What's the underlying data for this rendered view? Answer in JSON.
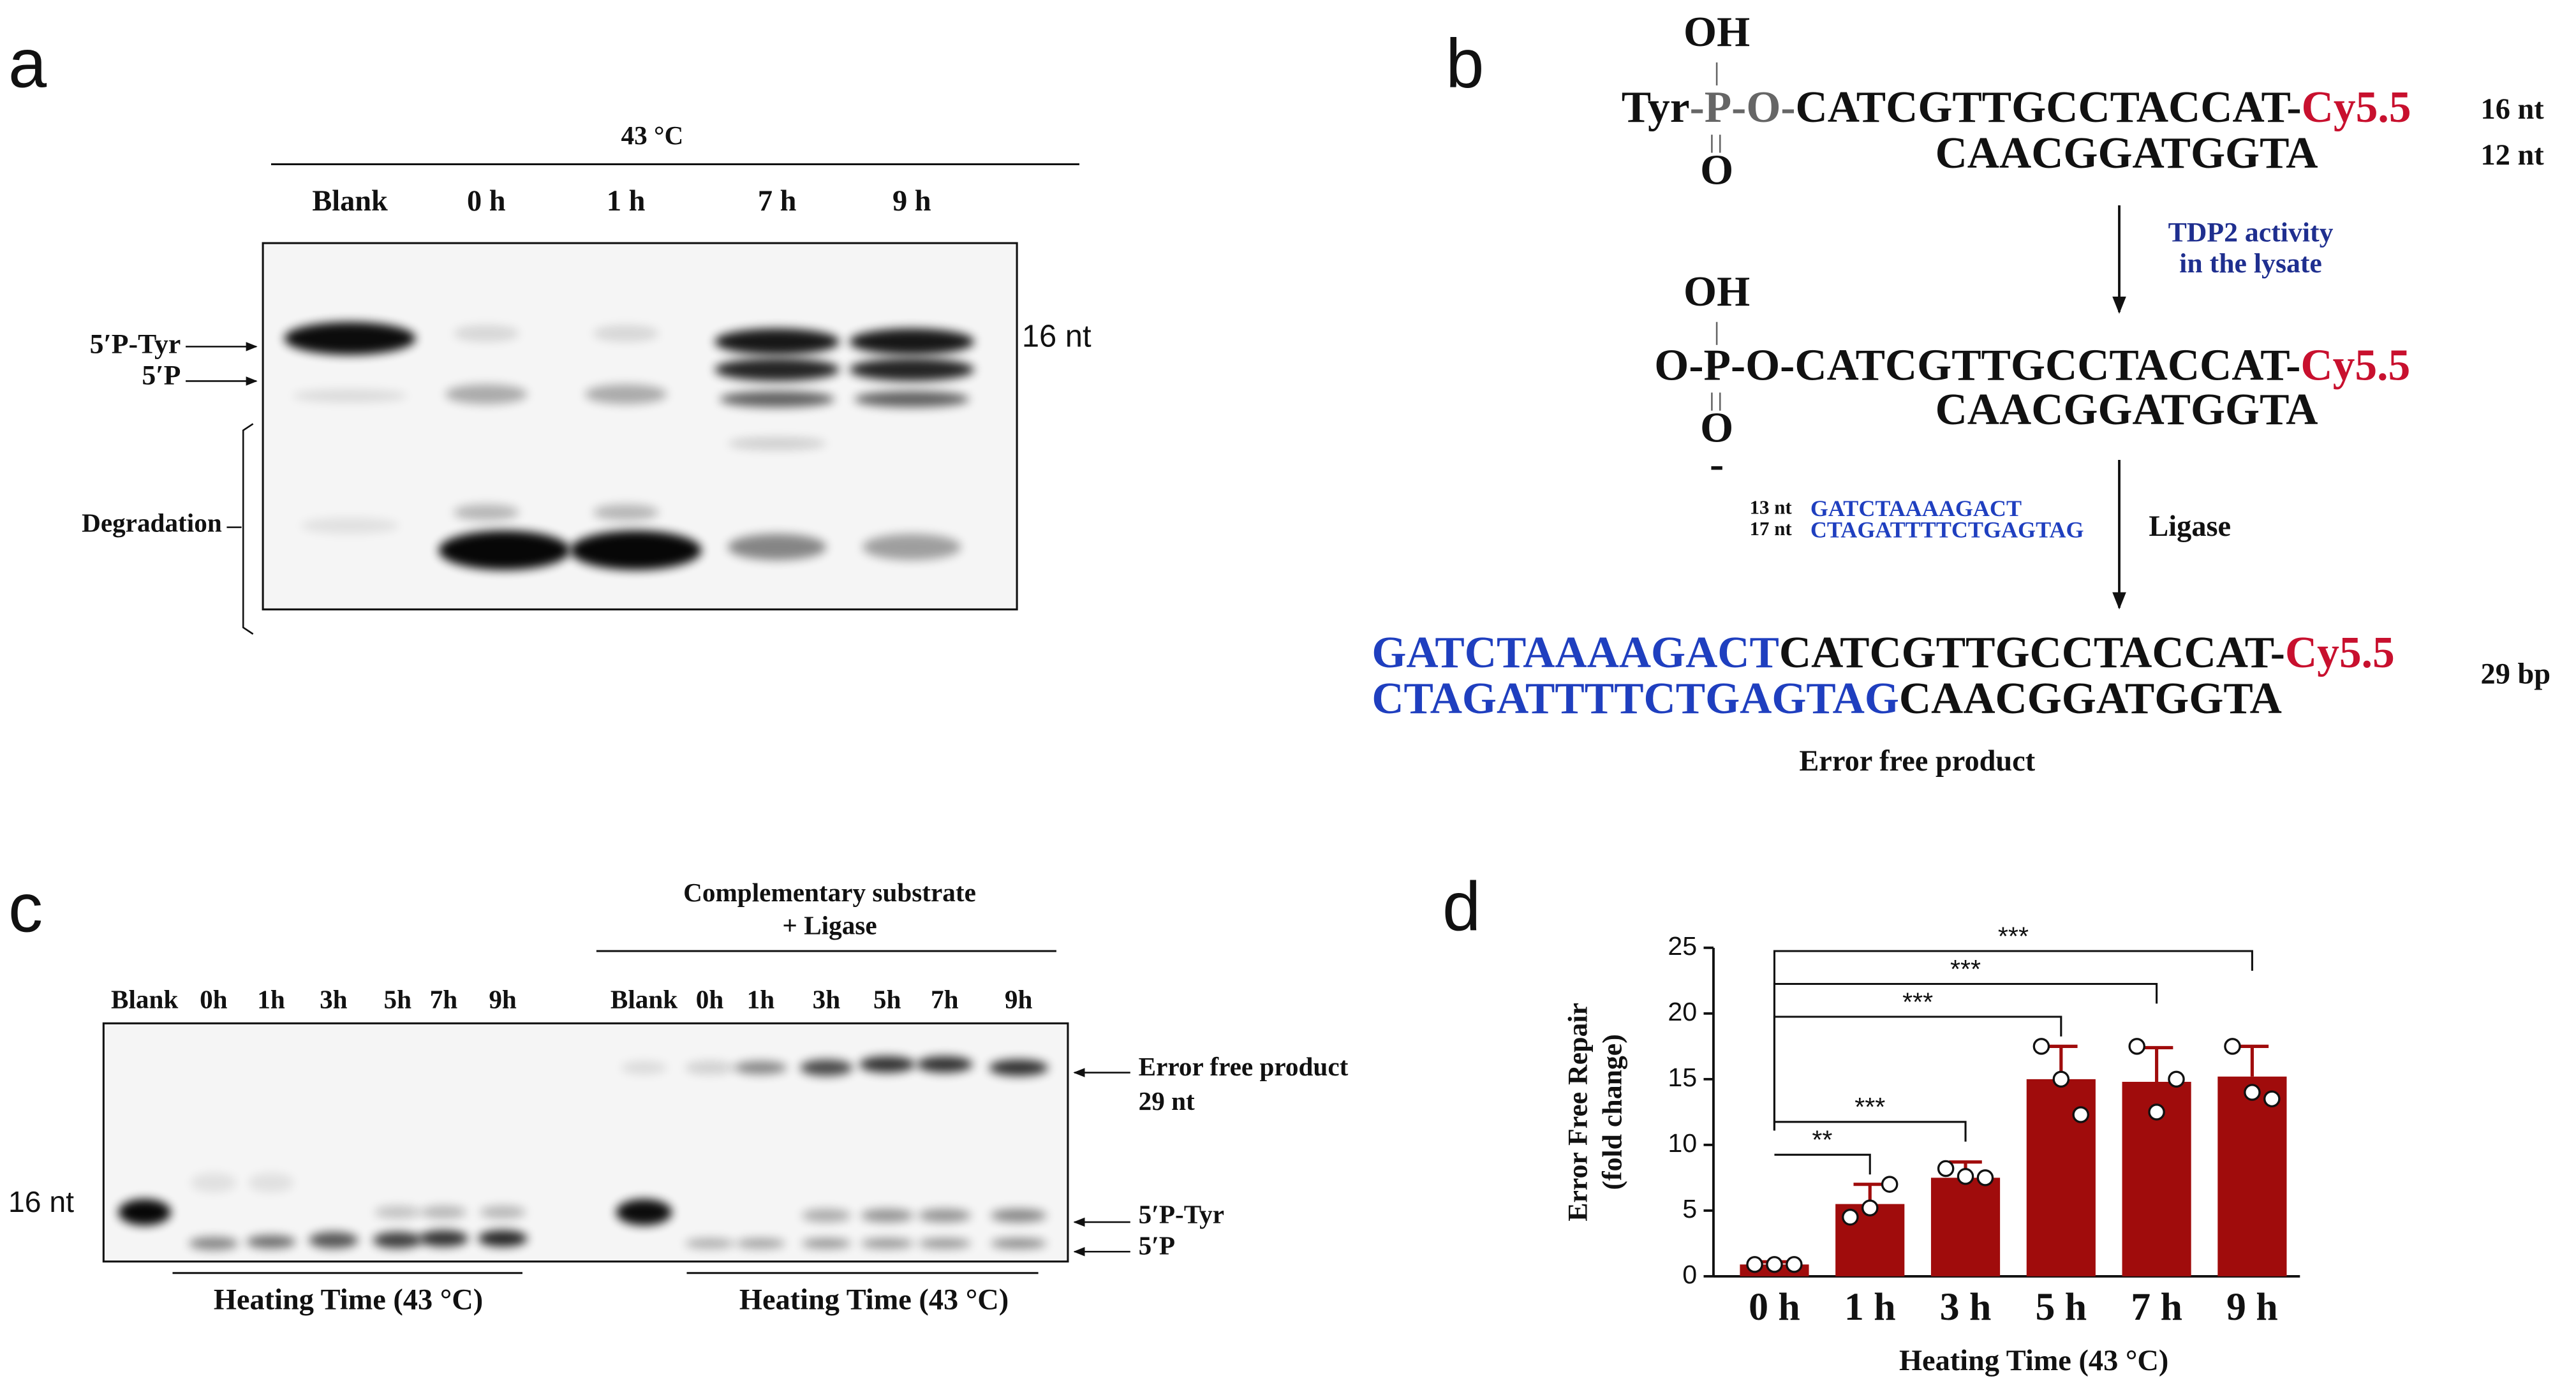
{
  "panel_a": {
    "label": "a",
    "temperature": "43 °C",
    "lanes": [
      "Blank",
      "0 h",
      "1 h",
      "7 h",
      "9 h"
    ],
    "tyr_band": "5′P-Tyr",
    "p_band": "5′P",
    "degradation": "Degradation",
    "size": "16 nt"
  },
  "panel_b": {
    "label": "b",
    "substrate": {
      "oh": "OH",
      "prefix": "Tyr",
      "link": "-P-O-",
      "top": "CATCGTTGCCTACCAT-",
      "dye": "Cy5.5",
      "top_size": "16 nt",
      "bottom": "CAACGGATGGTA",
      "bottom_size": "12 nt",
      "o": "O"
    },
    "step1": [
      "TDP2 activity",
      "in the lysate"
    ],
    "intermediate": {
      "oh": "OH",
      "link": "O-P-O-",
      "top": "CATCGTTGCCTACCAT-",
      "dye": "Cy5.5",
      "bottom": "CAACGGATGGTA",
      "o": "O",
      "charge": "-"
    },
    "oligos": [
      {
        "size": "13 nt",
        "seq": "GATCTAAAAGACT"
      },
      {
        "size": "17 nt",
        "seq": "CTAGATTTTCTGAGTAG"
      }
    ],
    "step2": "Ligase",
    "product": {
      "top_added": "GATCTAAAAGACT",
      "top": "CATCGTTGCCTACCAT-",
      "dye": "Cy5.5",
      "size": "29 bp",
      "bottom_added": "CTAGATTTTCTGAGTAG",
      "bottom": "CAACGGATGGTA",
      "caption": "Error free product"
    }
  },
  "panel_c": {
    "label": "c",
    "header": [
      "Complementary substrate",
      "+ Ligase"
    ],
    "lanes_left": [
      "Blank",
      "0h",
      "1h",
      "3h",
      "5h",
      "7h",
      "9h"
    ],
    "lanes_right": [
      "Blank",
      "0h",
      "1h",
      "3h",
      "5h",
      "7h",
      "9h"
    ],
    "size": "16 nt",
    "product_band": [
      "Error free product",
      "29 nt"
    ],
    "tyr_band": "5′P-Tyr",
    "p_band": "5′P",
    "group_labels": [
      "Heating Time (43 °C)",
      "Heating Time (43 °C)"
    ]
  },
  "chart_data": {
    "type": "bar",
    "label": "d",
    "x_label": "Heating Time (43 °C)",
    "y_label": [
      "Error Free Repair",
      "(fold change)"
    ],
    "categories": [
      "0 h",
      "1 h",
      "3 h",
      "5 h",
      "7 h",
      "9 h"
    ],
    "values": [
      0.9,
      5.5,
      7.5,
      15,
      14.8,
      15.2
    ],
    "errors": [
      0.2,
      1.5,
      1.2,
      2.5,
      2.6,
      2.3
    ],
    "points": [
      [
        0.9,
        0.9,
        0.9
      ],
      [
        4.5,
        5.2,
        7
      ],
      [
        8.2,
        7.6,
        7.5
      ],
      [
        17.5,
        15,
        12.3
      ],
      [
        17.5,
        12.5,
        15
      ],
      [
        17.5,
        14,
        13.5
      ]
    ],
    "significance": [
      null,
      "**",
      "***",
      "***",
      "***",
      "***"
    ],
    "color": "#a00c0c",
    "ylim": [
      0,
      25
    ],
    "yticks": [
      0,
      5,
      10,
      15,
      20,
      25
    ]
  }
}
